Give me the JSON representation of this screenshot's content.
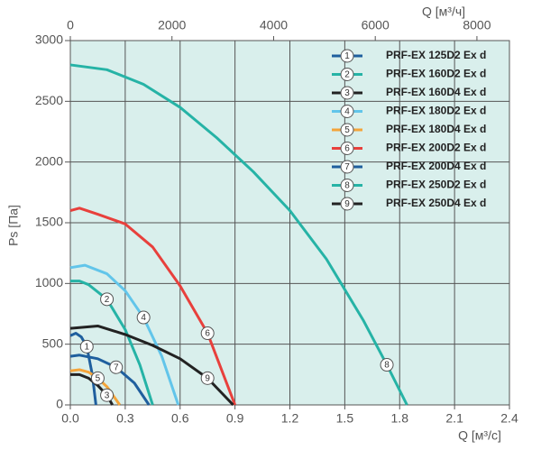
{
  "chart_data": {
    "type": "line",
    "xlabel": "Q [м³/с]",
    "x2label": "Q [м³/ч]",
    "ylabel": "Ps [Па]",
    "xlim": [
      0,
      2.4
    ],
    "xticks": [
      {
        "value": 0,
        "label": "0.0"
      },
      0.3,
      0.6,
      0.9,
      1.2,
      1.5,
      1.8,
      2.1,
      2.4
    ],
    "x2lim": [
      0,
      8640
    ],
    "x2ticks": [
      0,
      2000,
      4000,
      6000,
      8000
    ],
    "ylim": [
      0,
      3000
    ],
    "yticks": [
      0,
      500,
      1000,
      1500,
      2000,
      2500,
      3000
    ],
    "grid": true,
    "legend": "upper right",
    "background": "#d9efec",
    "series": [
      {
        "name": "PRF-EX 125D2 Ex d",
        "label": "1",
        "color": "#1f5f9e",
        "x": [
          0,
          0.03,
          0.06,
          0.09,
          0.12,
          0.14
        ],
        "values": [
          570,
          590,
          560,
          480,
          250,
          0
        ]
      },
      {
        "name": "PRF-EX 160D2 Ex d",
        "label": "2",
        "color": "#26b3a6",
        "x": [
          0,
          0.05,
          0.1,
          0.2,
          0.3,
          0.38,
          0.45
        ],
        "values": [
          1020,
          1020,
          990,
          870,
          620,
          330,
          0
        ]
      },
      {
        "name": "PRF-EX 160D4 Ex d",
        "label": "3",
        "color": "#222222",
        "x": [
          0,
          0.05,
          0.1,
          0.15,
          0.2,
          0.23
        ],
        "values": [
          250,
          250,
          220,
          160,
          80,
          0
        ]
      },
      {
        "name": "PRF-EX 180D2 Ex d",
        "label": "4",
        "color": "#62c5ea",
        "x": [
          0,
          0.08,
          0.2,
          0.3,
          0.4,
          0.5,
          0.59
        ],
        "values": [
          1130,
          1150,
          1080,
          940,
          720,
          400,
          0
        ]
      },
      {
        "name": "PRF-EX 180D4 Ex d",
        "label": "5",
        "color": "#f4a43a",
        "x": [
          0,
          0.05,
          0.1,
          0.15,
          0.2,
          0.27
        ],
        "values": [
          280,
          290,
          270,
          220,
          150,
          0
        ]
      },
      {
        "name": "PRF-EX 200D2 Ex d",
        "label": "6",
        "color": "#e8403c",
        "x": [
          0,
          0.05,
          0.15,
          0.3,
          0.45,
          0.6,
          0.75,
          0.9
        ],
        "values": [
          1600,
          1620,
          1570,
          1490,
          1300,
          980,
          590,
          0
        ]
      },
      {
        "name": "PRF-EX 200D4 Ex d",
        "label": "7",
        "color": "#1f5f9e",
        "x": [
          0,
          0.05,
          0.15,
          0.25,
          0.35,
          0.43
        ],
        "values": [
          400,
          410,
          380,
          310,
          180,
          0
        ]
      },
      {
        "name": "PRF-EX 250D2 Ex d",
        "label": "8",
        "color": "#26b3a6",
        "x": [
          0,
          0.2,
          0.4,
          0.6,
          0.8,
          1.0,
          1.2,
          1.4,
          1.6,
          1.73,
          1.84
        ],
        "values": [
          2800,
          2760,
          2640,
          2450,
          2200,
          1920,
          1600,
          1200,
          700,
          330,
          0
        ]
      },
      {
        "name": "PRF-EX 250D4 Ex d",
        "label": "9",
        "color": "#222222",
        "x": [
          0,
          0.15,
          0.3,
          0.45,
          0.6,
          0.75,
          0.89
        ],
        "values": [
          630,
          650,
          580,
          490,
          380,
          220,
          0
        ]
      }
    ]
  }
}
